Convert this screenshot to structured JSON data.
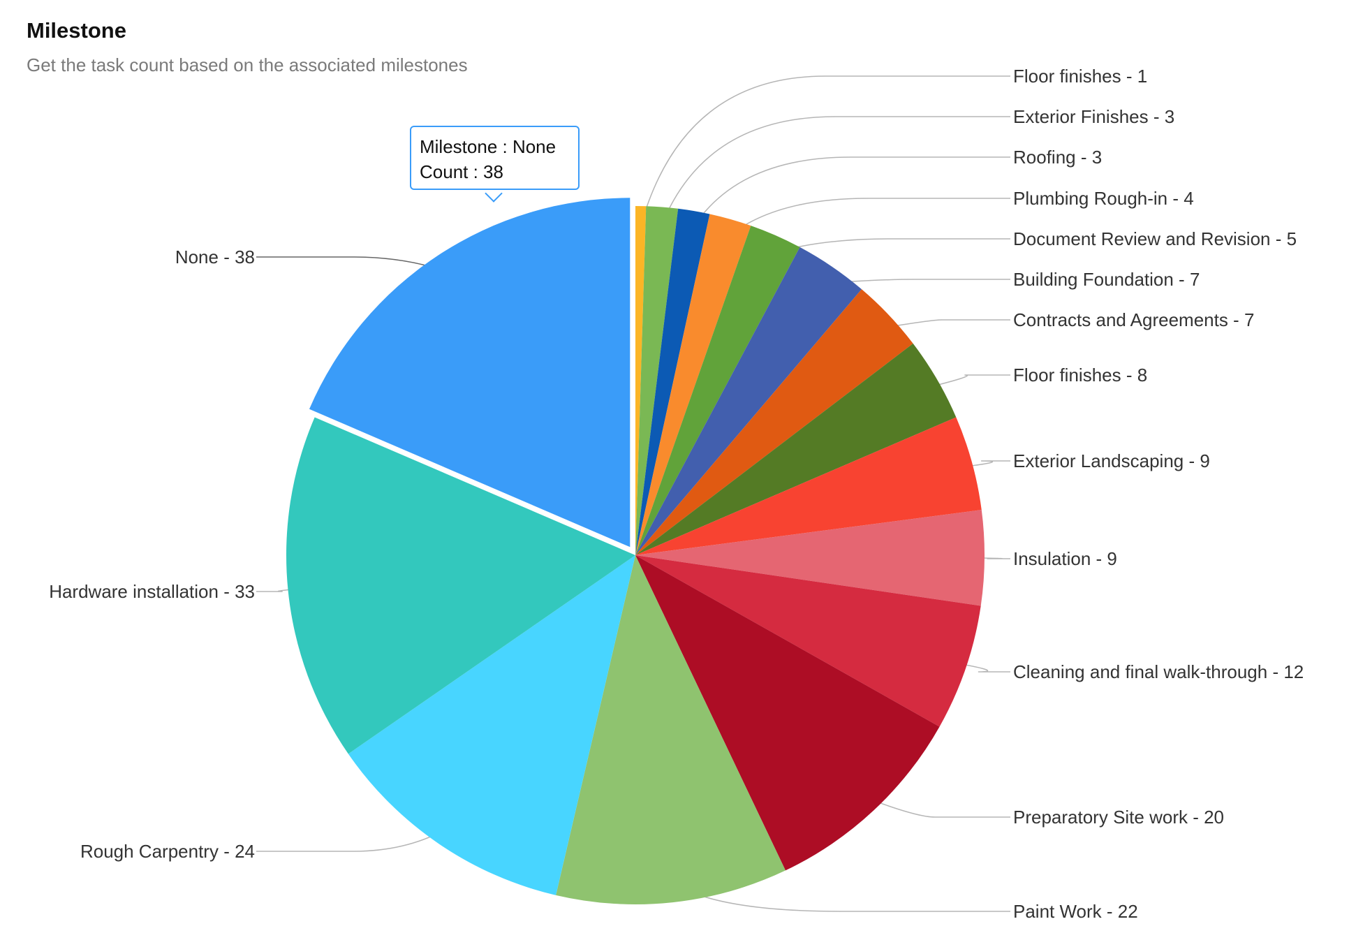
{
  "header": {
    "title": "Milestone",
    "subtitle": "Get the task count based on the associated milestones"
  },
  "tooltip": {
    "line1": "Milestone : None",
    "line2": "Count : 38"
  },
  "chart_data": {
    "type": "pie",
    "title": "Milestone",
    "subtitle": "Get the task count based on the associated milestones",
    "label_format": "{name} - {value}",
    "exploded": "None",
    "slices": [
      {
        "name": "Floor finishes",
        "value": 1,
        "color": "#fbb526"
      },
      {
        "name": "Exterior Finishes",
        "value": 3,
        "color": "#7ab854"
      },
      {
        "name": "Roofing",
        "value": 3,
        "color": "#0c5ab4"
      },
      {
        "name": "Plumbing Rough-in",
        "value": 4,
        "color": "#f98b2d"
      },
      {
        "name": "Document Review and Revision",
        "value": 5,
        "color": "#61a33a"
      },
      {
        "name": "Building Foundation",
        "value": 7,
        "color": "#425fae"
      },
      {
        "name": "Contracts and Agreements",
        "value": 7,
        "color": "#e05a12"
      },
      {
        "name": "Floor finishes",
        "value": 8,
        "color": "#547b25"
      },
      {
        "name": "Exterior Landscaping",
        "value": 9,
        "color": "#f84331"
      },
      {
        "name": "Insulation",
        "value": 9,
        "color": "#e56672"
      },
      {
        "name": "Cleaning and final walk-through",
        "value": 12,
        "color": "#d52b40"
      },
      {
        "name": "Preparatory Site work",
        "value": 20,
        "color": "#ad0d25"
      },
      {
        "name": "Paint Work",
        "value": 22,
        "color": "#8fc36f"
      },
      {
        "name": "Rough Carpentry",
        "value": 24,
        "color": "#48d5ff"
      },
      {
        "name": "Hardware installation",
        "value": 33,
        "color": "#33c8bd"
      },
      {
        "name": "None",
        "value": 38,
        "color": "#3a9cf9"
      }
    ]
  }
}
